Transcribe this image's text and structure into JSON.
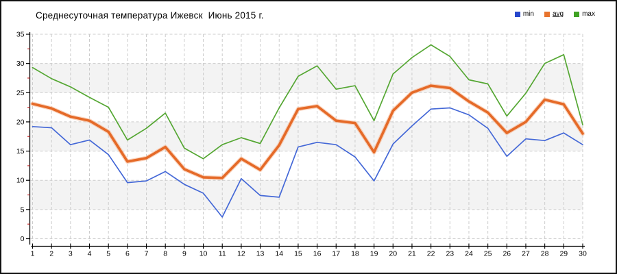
{
  "window": {
    "background": "#ffffff",
    "border_color": "#111111"
  },
  "legend": {
    "items": [
      {
        "label": "min",
        "color": "#2747cc",
        "underline": false
      },
      {
        "label": "avg",
        "color": "#e8742e",
        "underline": true
      },
      {
        "label": "max",
        "color": "#3fa223",
        "underline": false
      }
    ]
  },
  "chart_data": {
    "type": "line",
    "title": "Среднесуточная температура Ижевск  Июнь 2015 г.",
    "xlabel": "",
    "ylabel": "",
    "x": [
      1,
      2,
      3,
      4,
      5,
      6,
      7,
      8,
      9,
      10,
      11,
      12,
      13,
      14,
      15,
      16,
      17,
      18,
      19,
      20,
      21,
      22,
      23,
      24,
      25,
      26,
      27,
      28,
      29,
      30
    ],
    "series": [
      {
        "name": "min",
        "color": "#4468d7",
        "width": 1.7,
        "values": [
          19.2,
          19.0,
          16.1,
          16.9,
          14.4,
          9.6,
          9.9,
          11.5,
          9.3,
          7.8,
          3.7,
          10.3,
          7.4,
          7.1,
          15.7,
          16.5,
          16.1,
          14.0,
          9.9,
          16.2,
          19.3,
          22.2,
          22.4,
          21.2,
          18.9,
          14.1,
          17.1,
          16.8,
          18.1,
          16.1
        ]
      },
      {
        "name": "avg",
        "color": "#e56a28",
        "width": 3.6,
        "halo": "#f6b28c",
        "values": [
          23.1,
          22.3,
          20.9,
          20.2,
          18.3,
          13.2,
          13.8,
          15.7,
          11.9,
          10.5,
          10.4,
          13.7,
          11.8,
          16.0,
          22.2,
          22.7,
          20.2,
          19.8,
          14.8,
          21.9,
          25.0,
          26.2,
          25.8,
          23.5,
          21.6,
          18.1,
          20.0,
          23.8,
          23.0,
          18.0
        ]
      },
      {
        "name": "max",
        "color": "#55a733",
        "width": 1.7,
        "values": [
          29.3,
          27.4,
          26.0,
          24.2,
          22.5,
          16.9,
          18.9,
          21.5,
          15.5,
          13.7,
          16.1,
          17.3,
          16.3,
          22.4,
          27.8,
          29.6,
          25.6,
          26.2,
          20.2,
          28.2,
          31.0,
          33.2,
          31.2,
          27.2,
          26.5,
          21.0,
          24.9,
          30.0,
          31.5,
          19.5
        ]
      }
    ],
    "ylim": [
      0,
      35
    ],
    "ytick_step": 5,
    "ytick_labels": [
      "0",
      "5",
      "10",
      "15",
      "20",
      "25",
      "30",
      "35"
    ],
    "minor_ticks": [
      2.5,
      7.5,
      12.5,
      17.5,
      22.5,
      27.5,
      32.5
    ],
    "minor_tick_color": "#cc3333",
    "grid": true,
    "grid_color": "#cccccc",
    "axis_color": "#000000",
    "band_fill": "#f3f3f3",
    "bands": [
      [
        5,
        10
      ],
      [
        15,
        20
      ],
      [
        25,
        30
      ]
    ],
    "legend_position": "top-right"
  }
}
